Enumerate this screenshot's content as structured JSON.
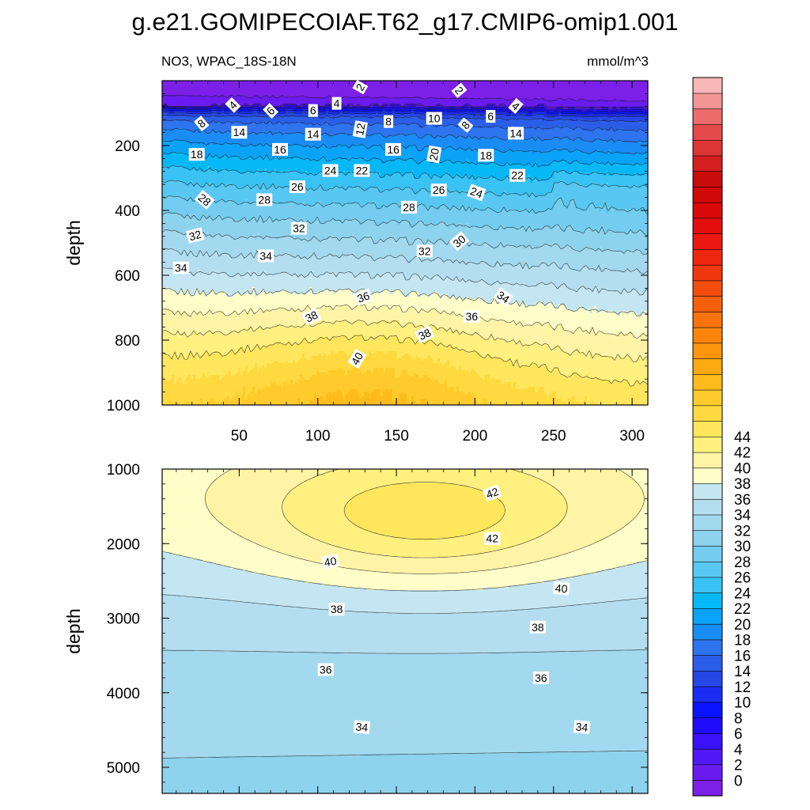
{
  "title": "g.e21.GOMIPECOIAF.T62_g17.CMIP6-omip1.001",
  "subtitle_left": "NO3, WPAC_18S-18N",
  "subtitle_right": "mmol/m^3",
  "chart_data": [
    {
      "type": "heatmap",
      "panel": "top",
      "title": "g.e21.GOMIPECOIAF.T62_g17.CMIP6-omip1.001",
      "subtitle_left": "NO3, WPAC_18S-18N",
      "subtitle_right": "mmol/m^3",
      "ylabel": "depth",
      "xlim": [
        1,
        310
      ],
      "ylim": [
        0,
        1000
      ],
      "y_reversed": true,
      "xticks": [
        50,
        100,
        150,
        200,
        250,
        300
      ],
      "xtick_labels": [
        "50",
        "100",
        "150",
        "200",
        "250",
        "300"
      ],
      "yticks": [
        200,
        400,
        600,
        800,
        1000
      ],
      "ytick_labels": [
        "200",
        "400",
        "600",
        "800",
        "1000"
      ],
      "contour_labels": [
        {
          "text": "2",
          "x": 127,
          "y": 20,
          "angle": 60
        },
        {
          "text": "2",
          "x": 190,
          "y": 30,
          "angle": -50
        },
        {
          "text": "4",
          "x": 46,
          "y": 75,
          "angle": 45
        },
        {
          "text": "4",
          "x": 112,
          "y": 70,
          "angle": 0
        },
        {
          "text": "4",
          "x": 226,
          "y": 78,
          "angle": -40
        },
        {
          "text": "6",
          "x": 70,
          "y": 93,
          "angle": 45
        },
        {
          "text": "6",
          "x": 97,
          "y": 92,
          "angle": 0
        },
        {
          "text": "6",
          "x": 210,
          "y": 110,
          "angle": 0
        },
        {
          "text": "8",
          "x": 26,
          "y": 132,
          "angle": 40
        },
        {
          "text": "8",
          "x": 145,
          "y": 126,
          "angle": 0
        },
        {
          "text": "8",
          "x": 194,
          "y": 137,
          "angle": 50
        },
        {
          "text": "10",
          "x": 174,
          "y": 116,
          "angle": 0
        },
        {
          "text": "12",
          "x": 127,
          "y": 150,
          "angle": 80
        },
        {
          "text": "14",
          "x": 50,
          "y": 159,
          "angle": 0
        },
        {
          "text": "14",
          "x": 97,
          "y": 165,
          "angle": 0
        },
        {
          "text": "14",
          "x": 226,
          "y": 162,
          "angle": 0
        },
        {
          "text": "16",
          "x": 76,
          "y": 212,
          "angle": 0
        },
        {
          "text": "16",
          "x": 148,
          "y": 212,
          "angle": 0
        },
        {
          "text": "18",
          "x": 23,
          "y": 227,
          "angle": 0
        },
        {
          "text": "18",
          "x": 207,
          "y": 230,
          "angle": 0
        },
        {
          "text": "20",
          "x": 174,
          "y": 227,
          "angle": 80
        },
        {
          "text": "22",
          "x": 128,
          "y": 277,
          "angle": 0
        },
        {
          "text": "22",
          "x": 227,
          "y": 292,
          "angle": 0
        },
        {
          "text": "24",
          "x": 108,
          "y": 277,
          "angle": 0
        },
        {
          "text": "24",
          "x": 201,
          "y": 345,
          "angle": -20
        },
        {
          "text": "26",
          "x": 87,
          "y": 327,
          "angle": 0
        },
        {
          "text": "26",
          "x": 177,
          "y": 337,
          "angle": 0
        },
        {
          "text": "28",
          "x": 28,
          "y": 367,
          "angle": -40
        },
        {
          "text": "28",
          "x": 66,
          "y": 367,
          "angle": 0
        },
        {
          "text": "28",
          "x": 158,
          "y": 390,
          "angle": 0
        },
        {
          "text": "30",
          "x": 190,
          "y": 495,
          "angle": 40
        },
        {
          "text": "32",
          "x": 22,
          "y": 477,
          "angle": 15
        },
        {
          "text": "32",
          "x": 88,
          "y": 455,
          "angle": 0
        },
        {
          "text": "32",
          "x": 168,
          "y": 525,
          "angle": 0
        },
        {
          "text": "34",
          "x": 13,
          "y": 577,
          "angle": 0
        },
        {
          "text": "34",
          "x": 67,
          "y": 540,
          "angle": 0
        },
        {
          "text": "34",
          "x": 218,
          "y": 667,
          "angle": -35
        },
        {
          "text": "36",
          "x": 129,
          "y": 667,
          "angle": 20
        },
        {
          "text": "36",
          "x": 198,
          "y": 727,
          "angle": 0
        },
        {
          "text": "38",
          "x": 96,
          "y": 727,
          "angle": 25
        },
        {
          "text": "38",
          "x": 168,
          "y": 782,
          "angle": 25
        },
        {
          "text": "40",
          "x": 125,
          "y": 857,
          "angle": 60
        }
      ]
    },
    {
      "type": "heatmap",
      "panel": "bottom",
      "ylabel": "depth",
      "xlim": [
        1,
        310
      ],
      "ylim": [
        1000,
        5350
      ],
      "y_reversed": true,
      "yticks": [
        1000,
        2000,
        3000,
        4000,
        5000
      ],
      "ytick_labels": [
        "1000",
        "2000",
        "3000",
        "4000",
        "5000"
      ],
      "contour_labels": [
        {
          "text": "42",
          "x": 211,
          "y": 1320,
          "angle": 20
        },
        {
          "text": "42",
          "x": 211,
          "y": 1930,
          "angle": 0
        },
        {
          "text": "40",
          "x": 108,
          "y": 2240,
          "angle": 10
        },
        {
          "text": "40",
          "x": 255,
          "y": 2600,
          "angle": -5
        },
        {
          "text": "38",
          "x": 112,
          "y": 2880,
          "angle": 0
        },
        {
          "text": "38",
          "x": 240,
          "y": 3120,
          "angle": 0
        },
        {
          "text": "36",
          "x": 105,
          "y": 3690,
          "angle": 0
        },
        {
          "text": "36",
          "x": 242,
          "y": 3800,
          "angle": 0
        },
        {
          "text": "34",
          "x": 128,
          "y": 4460,
          "angle": -5
        },
        {
          "text": "34",
          "x": 268,
          "y": 4460,
          "angle": -5
        }
      ]
    }
  ],
  "colorbar": {
    "levels": [
      0,
      2,
      4,
      6,
      8,
      10,
      12,
      14,
      16,
      18,
      20,
      22,
      24,
      26,
      28,
      30,
      32,
      34,
      36,
      38,
      40,
      42,
      44
    ],
    "labels": [
      "0",
      "2",
      "4",
      "6",
      "8",
      "10",
      "12",
      "14",
      "16",
      "18",
      "20",
      "22",
      "24",
      "26",
      "28",
      "30",
      "32",
      "34",
      "36",
      "38",
      "40",
      "42",
      "44"
    ],
    "colors": [
      "#7c20e8",
      "#6a1cf0",
      "#5218f5",
      "#3912f8",
      "#1f0cfb",
      "#0b14ff",
      "#1b2df2",
      "#2746e6",
      "#2b5ee8",
      "#2d74ee",
      "#1a8cf5",
      "#0aa3f8",
      "#07b8f6",
      "#39c2f4",
      "#58c8f2",
      "#74cdf0",
      "#8ed3ee",
      "#a3d9ee",
      "#b4def0",
      "#c4e6f3",
      "#fffec8",
      "#fff4a6",
      "#fff07f",
      "#ffe65c",
      "#ffd93f",
      "#ffcb2c",
      "#ffbb1c",
      "#ffa812",
      "#fd950e",
      "#fb840d",
      "#f8720e",
      "#f5600e",
      "#f24c0e",
      "#f0380e",
      "#ee2710",
      "#ea1810",
      "#e30e0e",
      "#d90909",
      "#cf0808",
      "#c80c0c",
      "#d31f1f",
      "#dc3535",
      "#e44a4a",
      "#ec6b6b",
      "#f39595",
      "#f9b6b6"
    ]
  }
}
